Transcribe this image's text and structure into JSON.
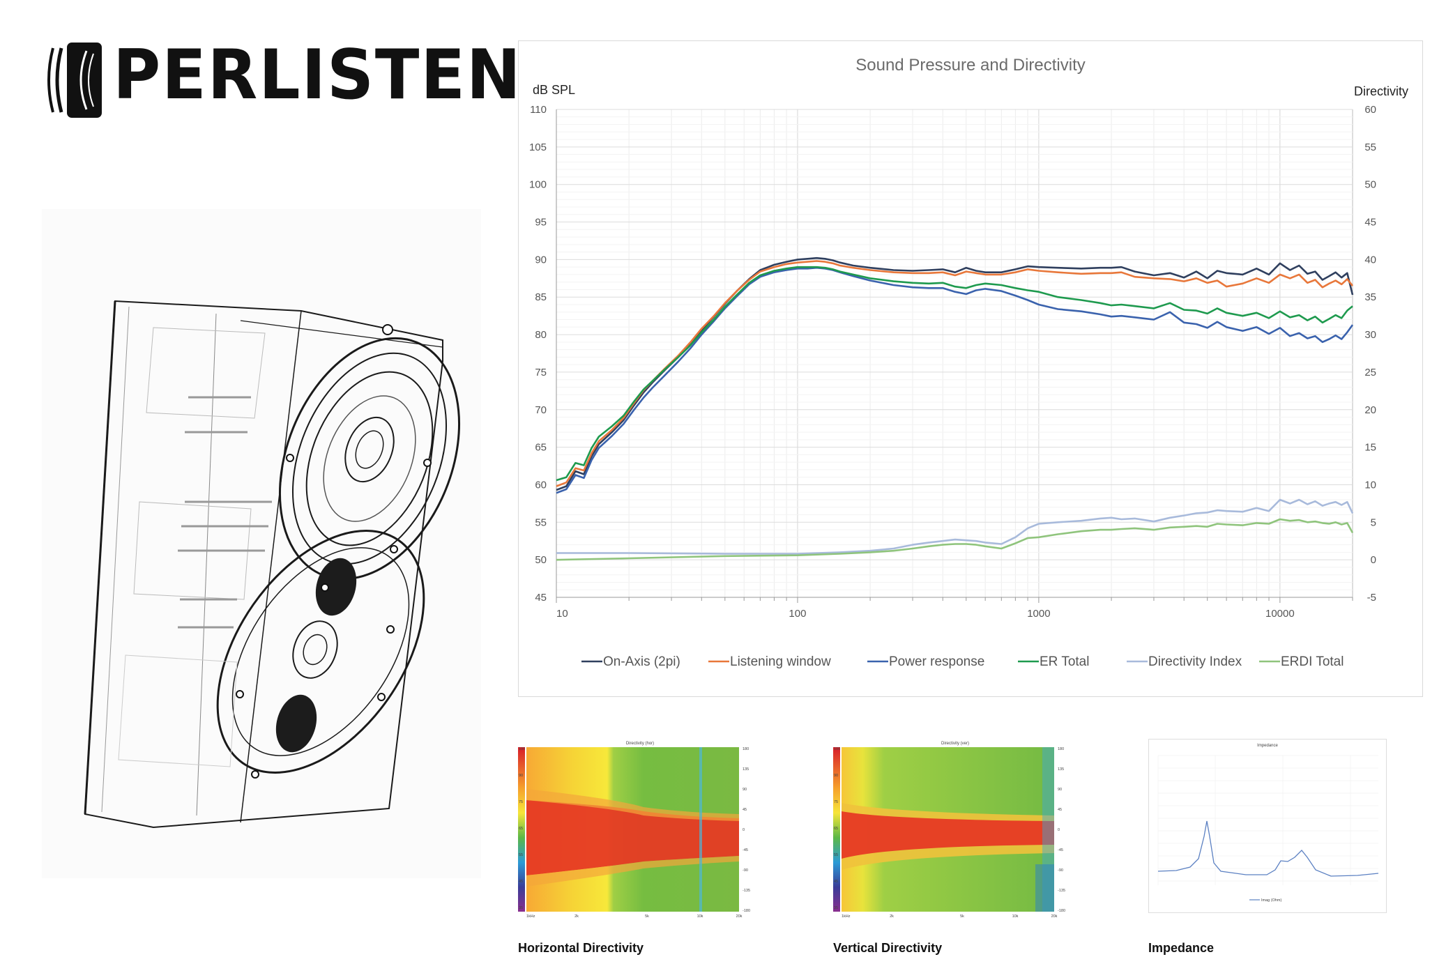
{
  "brand": {
    "name": "PERLISTEN"
  },
  "main_chart_title": "Sound Pressure and Directivity",
  "captions": {
    "horizontal": "Horizontal Directivity",
    "vertical": "Vertical Directivity",
    "impedance": "Impedance"
  },
  "mini_titles": {
    "horizontal": "Directivity (hor)",
    "vertical": "Directivity (ver)",
    "impedance": "Impedance",
    "impedance_legend": "Imag (Ohm)"
  },
  "mini_ticks": {
    "x": [
      "1kHz",
      "2k",
      "5k",
      "10k",
      "20k"
    ],
    "left": [
      "100",
      "90",
      "75",
      "65",
      "55",
      "45",
      "35"
    ],
    "right": [
      "180",
      "135",
      "90",
      "45",
      "0",
      "-45",
      "-90",
      "-135",
      "-180"
    ]
  },
  "chart_data": {
    "type": "line",
    "title": "Sound Pressure and Directivity",
    "ylabel": "dB SPL",
    "y2label": "Directivity",
    "xscale": "log",
    "xlim": [
      10,
      20000
    ],
    "ylim": [
      45,
      110
    ],
    "y2lim": [
      -5,
      60
    ],
    "x_ticks": [
      "10",
      "100",
      "1000",
      "10000"
    ],
    "y_ticks": [
      "110",
      "105",
      "100",
      "95",
      "90",
      "85",
      "80",
      "75",
      "70",
      "65",
      "60",
      "55",
      "50",
      "45"
    ],
    "y2_ticks": [
      "60",
      "55",
      "50",
      "45",
      "40",
      "35",
      "30",
      "25",
      "20",
      "15",
      "10",
      "5",
      "0",
      "-5"
    ],
    "grid": true,
    "legend": "bottom",
    "series": [
      {
        "name": "On-Axis (2pi)",
        "color": "#2f3f5e",
        "axis": "left",
        "x": [
          10,
          11,
          12,
          13,
          14,
          15,
          17,
          19,
          21,
          23,
          25,
          28,
          32,
          36,
          40,
          45,
          50,
          56,
          63,
          70,
          80,
          90,
          100,
          110,
          120,
          130,
          140,
          150,
          170,
          200,
          250,
          300,
          350,
          400,
          450,
          500,
          550,
          600,
          700,
          800,
          900,
          1000,
          1200,
          1500,
          1800,
          2000,
          2200,
          2500,
          3000,
          3500,
          4000,
          4500,
          5000,
          5500,
          6000,
          7000,
          8000,
          9000,
          10000,
          11000,
          12000,
          13000,
          14000,
          15000,
          16000,
          17000,
          18000,
          19000,
          20000
        ],
        "y": [
          59.3,
          59.8,
          61.8,
          61.4,
          63.8,
          65.4,
          67.0,
          68.6,
          70.6,
          72.3,
          73.6,
          75.2,
          77.0,
          78.8,
          80.6,
          82.4,
          84.1,
          85.8,
          87.4,
          88.6,
          89.3,
          89.7,
          90.0,
          90.1,
          90.2,
          90.1,
          89.9,
          89.6,
          89.2,
          88.9,
          88.6,
          88.5,
          88.6,
          88.7,
          88.3,
          88.9,
          88.5,
          88.3,
          88.3,
          88.7,
          89.1,
          89.0,
          88.9,
          88.8,
          88.9,
          88.9,
          89.0,
          88.4,
          87.9,
          88.2,
          87.6,
          88.4,
          87.5,
          88.5,
          88.2,
          88.0,
          88.8,
          88.0,
          89.5,
          88.6,
          89.2,
          88.1,
          88.4,
          87.3,
          87.8,
          88.3,
          87.6,
          88.2,
          85.3
        ]
      },
      {
        "name": "Listening window",
        "color": "#e8773a",
        "axis": "left",
        "x": [
          10,
          11,
          12,
          13,
          14,
          15,
          17,
          19,
          21,
          23,
          25,
          28,
          32,
          36,
          40,
          45,
          50,
          56,
          63,
          70,
          80,
          90,
          100,
          110,
          120,
          130,
          140,
          150,
          170,
          200,
          250,
          300,
          350,
          400,
          450,
          500,
          550,
          600,
          700,
          800,
          900,
          1000,
          1200,
          1500,
          1800,
          2000,
          2200,
          2500,
          3000,
          3500,
          4000,
          4500,
          5000,
          5500,
          6000,
          7000,
          8000,
          9000,
          10000,
          11000,
          12000,
          13000,
          14000,
          15000,
          16000,
          17000,
          18000,
          19000,
          20000
        ],
        "y": [
          59.8,
          60.3,
          62.2,
          61.9,
          64.2,
          65.8,
          67.3,
          68.9,
          70.9,
          72.6,
          73.8,
          75.4,
          77.2,
          79.0,
          80.8,
          82.5,
          84.2,
          85.8,
          87.3,
          88.4,
          89.0,
          89.4,
          89.6,
          89.7,
          89.8,
          89.7,
          89.5,
          89.2,
          88.9,
          88.6,
          88.3,
          88.2,
          88.2,
          88.3,
          87.9,
          88.4,
          88.2,
          88.0,
          88.0,
          88.3,
          88.7,
          88.5,
          88.3,
          88.1,
          88.2,
          88.2,
          88.3,
          87.7,
          87.5,
          87.4,
          87.1,
          87.5,
          86.9,
          87.2,
          86.4,
          86.8,
          87.5,
          86.9,
          88.0,
          87.5,
          88.0,
          86.9,
          87.3,
          86.3,
          86.8,
          87.2,
          86.7,
          87.4,
          86.5
        ]
      },
      {
        "name": "Power response",
        "color": "#3a62ad",
        "axis": "left",
        "x": [
          10,
          11,
          12,
          13,
          14,
          15,
          17,
          19,
          21,
          23,
          25,
          28,
          32,
          36,
          40,
          45,
          50,
          56,
          63,
          70,
          80,
          90,
          100,
          110,
          120,
          130,
          140,
          150,
          170,
          200,
          250,
          300,
          350,
          400,
          450,
          500,
          550,
          600,
          700,
          800,
          900,
          1000,
          1200,
          1500,
          1800,
          2000,
          2200,
          2500,
          3000,
          3500,
          4000,
          4500,
          5000,
          5500,
          6000,
          7000,
          8000,
          9000,
          10000,
          11000,
          12000,
          13000,
          14000,
          15000,
          16000,
          17000,
          18000,
          19000,
          20000
        ],
        "y": [
          58.9,
          59.4,
          61.3,
          60.9,
          63.3,
          64.9,
          66.5,
          68.1,
          70.0,
          71.6,
          72.9,
          74.5,
          76.4,
          78.2,
          80.0,
          81.8,
          83.5,
          85.1,
          86.7,
          87.7,
          88.3,
          88.6,
          88.8,
          88.8,
          88.9,
          88.8,
          88.6,
          88.3,
          87.8,
          87.2,
          86.6,
          86.3,
          86.2,
          86.2,
          85.7,
          85.4,
          85.9,
          86.1,
          85.8,
          85.2,
          84.6,
          84.0,
          83.4,
          83.1,
          82.7,
          82.4,
          82.5,
          82.3,
          82.0,
          83.0,
          81.6,
          81.4,
          80.9,
          81.7,
          81.0,
          80.5,
          81.0,
          80.1,
          80.9,
          79.8,
          80.2,
          79.5,
          79.8,
          79.0,
          79.4,
          79.9,
          79.4,
          80.3,
          81.3
        ]
      },
      {
        "name": "ER Total",
        "color": "#1e9a4e",
        "axis": "left",
        "x": [
          10,
          11,
          12,
          13,
          14,
          15,
          17,
          19,
          21,
          23,
          25,
          28,
          32,
          36,
          40,
          45,
          50,
          56,
          63,
          70,
          80,
          90,
          100,
          110,
          120,
          130,
          140,
          150,
          170,
          200,
          250,
          300,
          350,
          400,
          450,
          500,
          550,
          600,
          700,
          800,
          900,
          1000,
          1200,
          1500,
          1800,
          2000,
          2200,
          2500,
          3000,
          3500,
          4000,
          4500,
          5000,
          5500,
          6000,
          7000,
          8000,
          9000,
          10000,
          11000,
          12000,
          13000,
          14000,
          15000,
          16000,
          17000,
          18000,
          19000,
          20000
        ],
        "y": [
          60.6,
          61.0,
          62.9,
          62.6,
          64.9,
          66.4,
          67.8,
          69.2,
          71.1,
          72.7,
          73.8,
          75.3,
          77.0,
          78.6,
          80.3,
          82.0,
          83.7,
          85.3,
          86.9,
          87.9,
          88.5,
          88.8,
          89.0,
          89.0,
          89.0,
          88.9,
          88.7,
          88.4,
          88.0,
          87.5,
          87.1,
          86.9,
          86.8,
          86.9,
          86.4,
          86.2,
          86.6,
          86.8,
          86.6,
          86.2,
          85.9,
          85.7,
          85.0,
          84.6,
          84.2,
          83.9,
          84.0,
          83.8,
          83.5,
          84.2,
          83.3,
          83.2,
          82.8,
          83.5,
          82.9,
          82.5,
          82.9,
          82.2,
          83.1,
          82.3,
          82.6,
          81.9,
          82.4,
          81.6,
          82.1,
          82.6,
          82.2,
          83.2,
          83.8
        ]
      },
      {
        "name": "Directivity Index",
        "color": "#a8badb",
        "axis": "right",
        "x": [
          10,
          20,
          50,
          100,
          150,
          200,
          250,
          300,
          350,
          400,
          450,
          500,
          550,
          600,
          700,
          800,
          900,
          1000,
          1200,
          1500,
          1800,
          2000,
          2200,
          2500,
          3000,
          3500,
          4000,
          4500,
          5000,
          5500,
          6000,
          7000,
          8000,
          9000,
          10000,
          11000,
          12000,
          13000,
          14000,
          15000,
          16000,
          17000,
          18000,
          19000,
          20000
        ],
        "y": [
          0.9,
          0.9,
          0.8,
          0.8,
          1.0,
          1.2,
          1.5,
          2.0,
          2.3,
          2.5,
          2.7,
          2.6,
          2.5,
          2.3,
          2.1,
          3.0,
          4.2,
          4.8,
          5.0,
          5.2,
          5.5,
          5.6,
          5.4,
          5.5,
          5.1,
          5.6,
          5.9,
          6.2,
          6.3,
          6.6,
          6.5,
          6.4,
          6.9,
          6.5,
          8.0,
          7.5,
          8.0,
          7.4,
          7.8,
          7.2,
          7.5,
          7.7,
          7.3,
          7.7,
          6.2
        ]
      },
      {
        "name": "ERDI Total",
        "color": "#8fc47c",
        "axis": "right",
        "x": [
          10,
          20,
          50,
          100,
          150,
          200,
          250,
          300,
          350,
          400,
          450,
          500,
          550,
          600,
          700,
          800,
          900,
          1000,
          1200,
          1500,
          1800,
          2000,
          2200,
          2500,
          3000,
          3500,
          4000,
          4500,
          5000,
          5500,
          6000,
          7000,
          8000,
          9000,
          10000,
          11000,
          12000,
          13000,
          14000,
          15000,
          16000,
          17000,
          18000,
          19000,
          20000
        ],
        "y": [
          0.0,
          0.2,
          0.5,
          0.6,
          0.8,
          1.0,
          1.2,
          1.5,
          1.8,
          2.0,
          2.1,
          2.1,
          2.0,
          1.8,
          1.5,
          2.2,
          2.9,
          3.0,
          3.4,
          3.8,
          4.0,
          4.0,
          4.1,
          4.2,
          4.0,
          4.3,
          4.4,
          4.5,
          4.4,
          4.8,
          4.7,
          4.6,
          4.9,
          4.8,
          5.4,
          5.2,
          5.3,
          5.0,
          5.1,
          4.9,
          4.8,
          5.0,
          4.7,
          4.9,
          3.6
        ]
      }
    ]
  }
}
